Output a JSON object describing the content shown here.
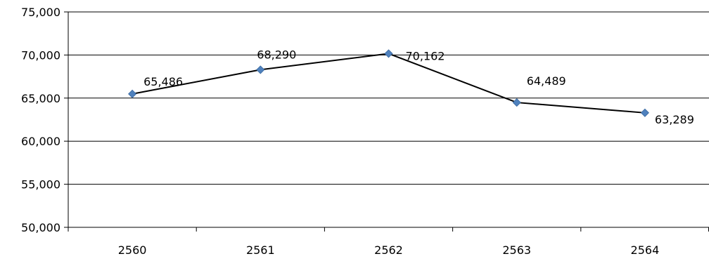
{
  "chart_data": {
    "type": "line",
    "categories": [
      "2560",
      "2561",
      "2562",
      "2563",
      "2564"
    ],
    "series": [
      {
        "values": [
          65486,
          68290,
          70162,
          64489,
          63289
        ],
        "labels": [
          "65,486",
          "68,290",
          "70,162",
          "64,489",
          "63,289"
        ],
        "line_color": "#000000",
        "marker_color": "#4F81BD",
        "marker": "diamond"
      }
    ],
    "y_ticks": [
      "50,000",
      "55,000",
      "60,000",
      "65,000",
      "70,000",
      "75,000"
    ],
    "ylim": [
      50000,
      75000
    ],
    "grid": "horizontal",
    "legend": "none"
  }
}
